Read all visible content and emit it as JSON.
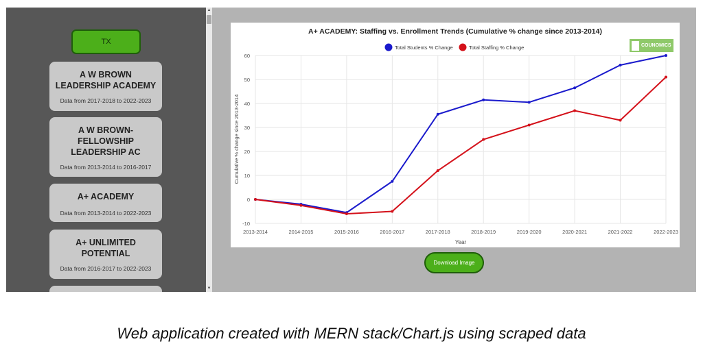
{
  "sidebar": {
    "state_button": "TX",
    "schools": [
      {
        "name": "A W BROWN LEADERSHIP ACADEMY",
        "range": "Data from 2017-2018 to 2022-2023"
      },
      {
        "name": "A W BROWN-FELLOWSHIP LEADERSHIP AC",
        "range": "Data from 2013-2014 to 2016-2017"
      },
      {
        "name": "A+ ACADEMY",
        "range": "Data from 2013-2014 to 2022-2023"
      },
      {
        "name": "A+ UNLIMITED POTENTIAL",
        "range": "Data from 2016-2017 to 2022-2023"
      },
      {
        "name": "",
        "range": ""
      }
    ]
  },
  "badge": {
    "text": "COUNOMICS"
  },
  "download_button": "Download Image",
  "caption": "Web application created with MERN stack/Chart.js using scraped data",
  "colors": {
    "students": "#1a1acc",
    "staffing": "#d4111a",
    "button": "#4caf1a",
    "sidebar": "#575757"
  },
  "chart_data": {
    "type": "line",
    "title": "A+ ACADEMY: Staffing vs. Enrollment Trends (Cumulative % change since 2013-2014)",
    "xlabel": "Year",
    "ylabel": "Cumulative % change since 2013-2014",
    "categories": [
      "2013-2014",
      "2014-2015",
      "2015-2016",
      "2016-2017",
      "2017-2018",
      "2018-2019",
      "2019-2020",
      "2020-2021",
      "2021-2022",
      "2022-2023"
    ],
    "ylim": [
      -10,
      60
    ],
    "yticks": [
      "60",
      "50",
      "40",
      "30",
      "20",
      "10",
      "0",
      "-10"
    ],
    "legend_position": "top",
    "grid": true,
    "series": [
      {
        "name": "Total Students % Change",
        "values": [
          0,
          -2,
          -5.5,
          7.5,
          35.5,
          41.5,
          40.5,
          46.5,
          56,
          60
        ]
      },
      {
        "name": "Total Staffing % Change",
        "values": [
          0,
          -2.5,
          -6,
          -5,
          12,
          25,
          31,
          37,
          33,
          51
        ]
      }
    ]
  }
}
